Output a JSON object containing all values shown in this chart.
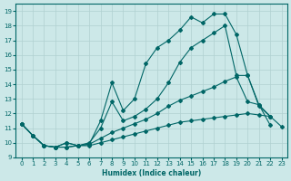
{
  "xlabel": "Humidex (Indice chaleur)",
  "bg_color": "#cce8e8",
  "grid_color": "#b0d0d0",
  "line_color": "#006666",
  "xlim": [
    -0.5,
    23.5
  ],
  "ylim": [
    9,
    19.5
  ],
  "xticks": [
    0,
    1,
    2,
    3,
    4,
    5,
    6,
    7,
    8,
    9,
    10,
    11,
    12,
    13,
    14,
    15,
    16,
    17,
    18,
    19,
    20,
    21,
    22,
    23
  ],
  "yticks": [
    9,
    10,
    11,
    12,
    13,
    14,
    15,
    16,
    17,
    18,
    19
  ],
  "line1_x": [
    0,
    1,
    2,
    3,
    4,
    5,
    6,
    7,
    8,
    9,
    10,
    11,
    12,
    13,
    14,
    15,
    16,
    17,
    18,
    19,
    20,
    21,
    22,
    23
  ],
  "line1_y": [
    11.3,
    10.5,
    9.8,
    9.7,
    9.7,
    9.8,
    9.8,
    10.0,
    10.2,
    10.4,
    10.6,
    10.8,
    11.0,
    11.2,
    11.4,
    11.5,
    11.6,
    11.7,
    11.8,
    11.9,
    12.0,
    11.9,
    11.8,
    11.1
  ],
  "line2_x": [
    0,
    1,
    2,
    3,
    4,
    5,
    6,
    7,
    8,
    9,
    10,
    11,
    12,
    13,
    14,
    15,
    16,
    17,
    18,
    19,
    20,
    21,
    22
  ],
  "line2_y": [
    11.3,
    10.5,
    9.8,
    9.7,
    9.7,
    9.8,
    9.9,
    10.3,
    10.7,
    11.0,
    11.3,
    11.6,
    12.0,
    12.5,
    12.9,
    13.2,
    13.5,
    13.8,
    14.2,
    14.5,
    12.8,
    12.6,
    11.8
  ],
  "line3_x": [
    0,
    1,
    2,
    3,
    4,
    5,
    6,
    7,
    8,
    9,
    10,
    11,
    12,
    13,
    14,
    15,
    16,
    17,
    18,
    19,
    20,
    21,
    22
  ],
  "line3_y": [
    11.3,
    10.5,
    9.8,
    9.7,
    10.0,
    9.8,
    10.0,
    11.0,
    12.8,
    11.5,
    11.8,
    12.3,
    13.0,
    14.1,
    15.5,
    16.5,
    17.0,
    17.5,
    18.0,
    14.6,
    14.6,
    12.5,
    11.8
  ],
  "line4_x": [
    0,
    1,
    2,
    3,
    4,
    5,
    6,
    7,
    8,
    9,
    10,
    11,
    12,
    13,
    14,
    15,
    16,
    17,
    18,
    19,
    20,
    21,
    22
  ],
  "line4_y": [
    11.3,
    10.5,
    9.8,
    9.7,
    10.0,
    9.8,
    9.9,
    11.5,
    14.1,
    12.2,
    13.0,
    15.4,
    16.5,
    17.0,
    17.7,
    18.6,
    18.2,
    18.8,
    18.8,
    17.4,
    14.6,
    12.6,
    11.2
  ]
}
